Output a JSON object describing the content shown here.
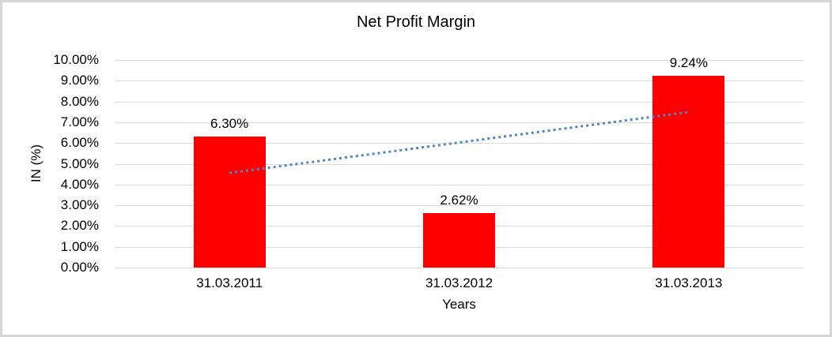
{
  "chart_data": {
    "type": "bar",
    "title": "Net Profit Margin",
    "categories": [
      "31.03.2011",
      "31.03.2012",
      "31.03.2013"
    ],
    "values": [
      6.3,
      2.62,
      9.24
    ],
    "data_labels": [
      "6.30%",
      "2.62%",
      "9.24%"
    ],
    "xlabel": "Years",
    "ylabel": "IN (%)",
    "ylim": [
      0,
      10
    ],
    "y_ticks": [
      "0.00%",
      "1.00%",
      "2.00%",
      "3.00%",
      "4.00%",
      "5.00%",
      "6.00%",
      "7.00%",
      "8.00%",
      "9.00%",
      "10.00%"
    ],
    "grid": "horizontal",
    "legend": "none",
    "bar_color": "#FF0000",
    "gridline_color": "#D9D9D9",
    "trendline": {
      "style": "dotted",
      "color": "#4A86C8",
      "start": {
        "category_index": 0,
        "value": 4.56
      },
      "end": {
        "category_index": 2,
        "value": 7.49
      }
    }
  }
}
